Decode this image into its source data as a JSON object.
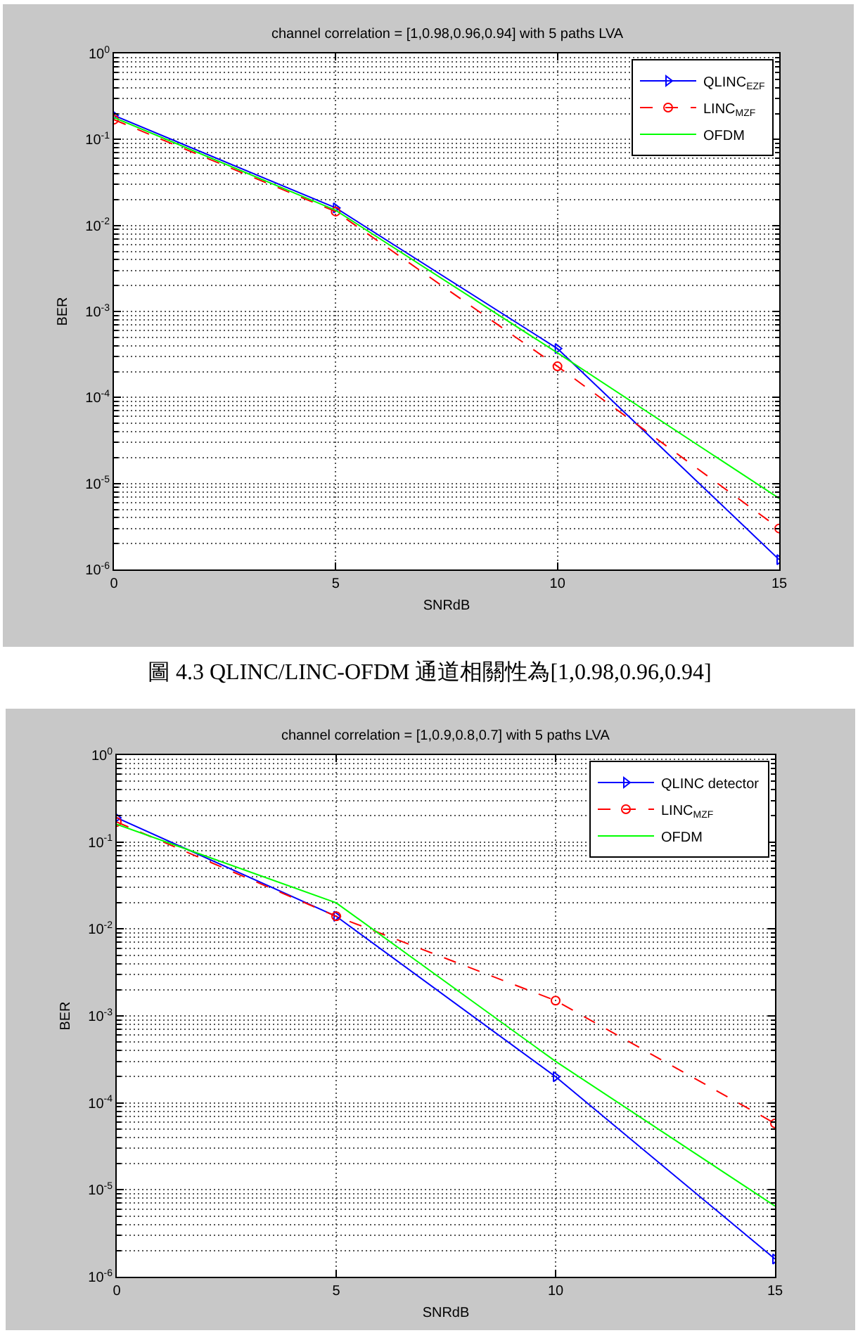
{
  "chart_data": [
    {
      "type": "line",
      "title": "channel correlation = [1,0.98,0.96,0.94] with 5 paths LVA",
      "xlabel": "SNRdB",
      "ylabel": "BER",
      "x": [
        0,
        5,
        10,
        15
      ],
      "series": [
        {
          "name": "QLINC$_{EZF}$",
          "color": "#0000ff",
          "values": [
            0.19,
            0.016,
            0.00037,
            1.3e-06
          ],
          "marker": "triangle",
          "line_style": "solid"
        },
        {
          "name": "LINC$_{MZF}$",
          "color": "#ff0000",
          "values": [
            0.17,
            0.0145,
            0.00023,
            3e-06
          ],
          "marker": "circle",
          "line_style": "dashed"
        },
        {
          "name": "OFDM",
          "color": "#00ff00",
          "values": [
            0.18,
            0.015,
            0.00033,
            6.7e-06
          ],
          "marker": "none",
          "line_style": "solid"
        }
      ],
      "xlim": [
        0,
        15
      ],
      "ylim": [
        1e-06,
        1
      ],
      "xticks": [
        0,
        5,
        10,
        15
      ],
      "yticks": [
        {
          "value": 1e-06,
          "label": "10$^{-6}$"
        },
        {
          "value": 1e-05,
          "label": "10$^{-5}$"
        },
        {
          "value": 0.0001,
          "label": "10$^{-4}$"
        },
        {
          "value": 0.001,
          "label": "10$^{-3}$"
        },
        {
          "value": 0.01,
          "label": "10$^{-2}$"
        },
        {
          "value": 0.1,
          "label": "10$^{-1}$"
        },
        {
          "value": 1,
          "label": "10$^{0}$"
        }
      ],
      "log": true,
      "grid": true,
      "legend": "top right",
      "annotations": [
        "圖 4.3 QLINC/LINC-OFDM 通道相關性為[1,0.98,0.96,0.94]"
      ]
    },
    {
      "type": "line",
      "title": "channel correlation = [1,0.9,0.8,0.7] with 5 paths LVA",
      "xlabel": "SNRdB",
      "ylabel": "BER",
      "x": [
        0,
        5,
        10,
        15
      ],
      "series": [
        {
          "name": "QLINC detector",
          "color": "#0000ff",
          "values": [
            0.19,
            0.014,
            0.0002,
            1.6e-06
          ],
          "marker": "triangle",
          "line_style": "solid"
        },
        {
          "name": "LINC$_{MZF}$",
          "color": "#ff0000",
          "values": [
            0.17,
            0.014,
            0.0015,
            5.8e-05
          ],
          "marker": "circle",
          "line_style": "dashed"
        },
        {
          "name": "OFDM",
          "color": "#00ff00",
          "values": [
            0.16,
            0.02,
            0.0003,
            6.5e-06
          ],
          "marker": "none",
          "line_style": "solid"
        }
      ],
      "xlim": [
        0,
        15
      ],
      "ylim": [
        1e-06,
        1
      ],
      "xticks": [
        0,
        5,
        10,
        15
      ],
      "yticks": [
        {
          "value": 1e-06,
          "label": "10$^{-6}$"
        },
        {
          "value": 1e-05,
          "label": "10$^{-5}$"
        },
        {
          "value": 0.0001,
          "label": "10$^{-4}$"
        },
        {
          "value": 0.001,
          "label": "10$^{-3}$"
        },
        {
          "value": 0.01,
          "label": "10$^{-2}$"
        },
        {
          "value": 0.1,
          "label": "10$^{-1}$"
        },
        {
          "value": 1,
          "label": "10$^{0}$"
        }
      ],
      "log": true,
      "grid": true,
      "legend": "top right"
    }
  ]
}
